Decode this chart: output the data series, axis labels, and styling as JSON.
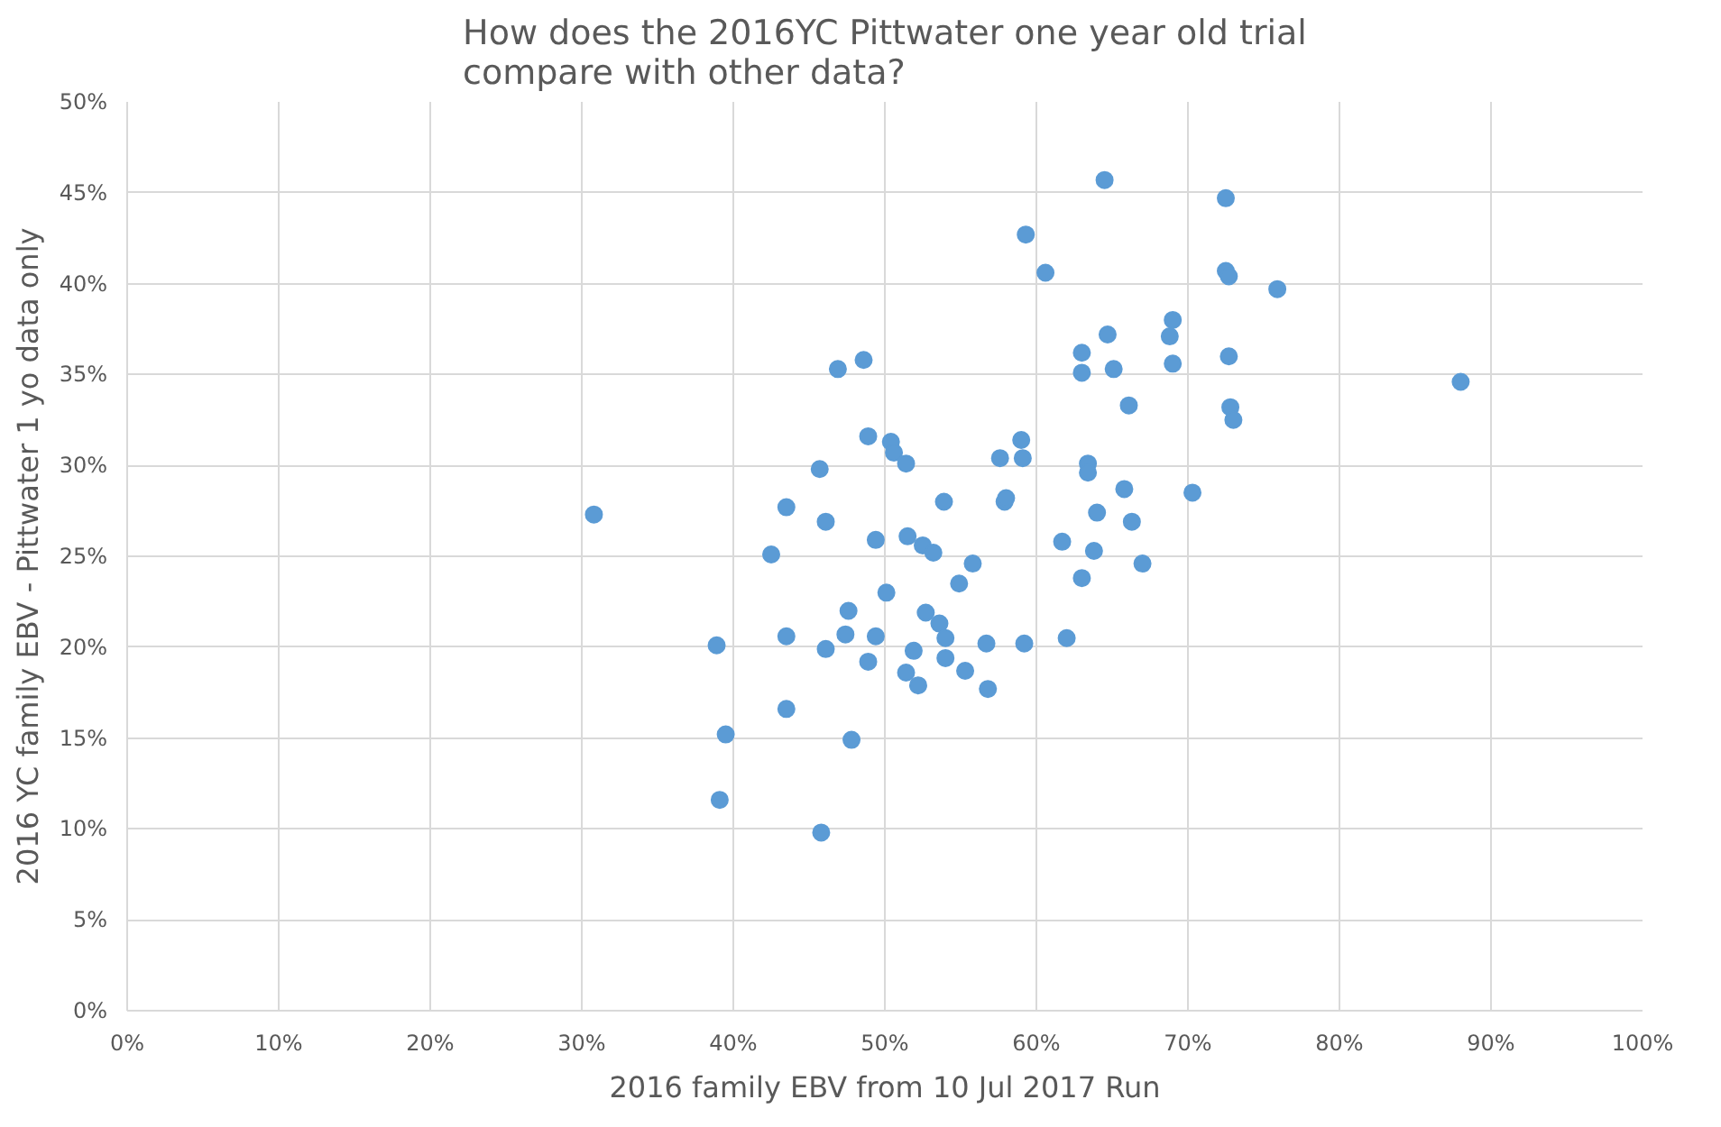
{
  "chart_data": {
    "type": "scatter",
    "title": "How does the 2016YC Pittwater one year old trial\ncompare with other data?",
    "xlabel": "2016 family EBV from 10 Jul 2017 Run",
    "ylabel": "2016 YC family EBV - Pittwater 1 yo data only",
    "xlim": [
      0,
      100
    ],
    "ylim": [
      0,
      50
    ],
    "xticks": [
      {
        "value": 0,
        "label": "0%"
      },
      {
        "value": 10,
        "label": "10%"
      },
      {
        "value": 20,
        "label": "20%"
      },
      {
        "value": 30,
        "label": "30%"
      },
      {
        "value": 40,
        "label": "40%"
      },
      {
        "value": 50,
        "label": "50%"
      },
      {
        "value": 60,
        "label": "60%"
      },
      {
        "value": 70,
        "label": "70%"
      },
      {
        "value": 80,
        "label": "80%"
      },
      {
        "value": 90,
        "label": "90%"
      },
      {
        "value": 100,
        "label": "100%"
      }
    ],
    "yticks": [
      {
        "value": 0,
        "label": "0%"
      },
      {
        "value": 5,
        "label": "5%"
      },
      {
        "value": 10,
        "label": "10%"
      },
      {
        "value": 15,
        "label": "15%"
      },
      {
        "value": 20,
        "label": "20%"
      },
      {
        "value": 25,
        "label": "25%"
      },
      {
        "value": 30,
        "label": "30%"
      },
      {
        "value": 35,
        "label": "35%"
      },
      {
        "value": 40,
        "label": "40%"
      },
      {
        "value": 45,
        "label": "45%"
      },
      {
        "value": 50,
        "label": "50%"
      }
    ],
    "grid": true,
    "marker": "circle",
    "series": [
      {
        "color": "#5b9bd5",
        "x": [
          46.9,
          48.6,
          48.9,
          50.4,
          50.6,
          51.4,
          45.7,
          43.5,
          30.8,
          46.1,
          49.4,
          51.5,
          52.5,
          42.5,
          50.1,
          47.6,
          52.7,
          47.4,
          49.4,
          43.5,
          38.9,
          46.1,
          48.9,
          51.9,
          53.2,
          53.9,
          57.9,
          55.8,
          54.9,
          53.6,
          54.0,
          51.4,
          52.2,
          54.0,
          55.3,
          56.7,
          56.8,
          59.2,
          62.0,
          43.5,
          39.5,
          47.8,
          39.1,
          45.8,
          64.0,
          66.3,
          61.7,
          63.8,
          67.0,
          63.0,
          64.5,
          72.5,
          59.3,
          60.6,
          72.5,
          72.7,
          75.9,
          69.0,
          68.8,
          64.7,
          63.0,
          63.0,
          65.1,
          69.0,
          72.7,
          88.0,
          66.1,
          72.8,
          73.0,
          59.0,
          59.1,
          57.6,
          63.4,
          63.4,
          58.0,
          65.8,
          70.3
        ],
        "values": [
          35.3,
          35.8,
          31.6,
          31.3,
          30.7,
          30.1,
          29.8,
          27.7,
          27.3,
          26.9,
          25.9,
          26.1,
          25.6,
          25.1,
          23.0,
          22.0,
          21.9,
          20.7,
          20.6,
          20.6,
          20.1,
          19.9,
          19.2,
          19.8,
          25.2,
          28.0,
          28.0,
          24.6,
          23.5,
          21.3,
          20.5,
          18.6,
          17.9,
          19.4,
          18.7,
          20.2,
          17.7,
          20.2,
          20.5,
          16.6,
          15.2,
          14.9,
          11.6,
          9.8,
          27.4,
          26.9,
          25.8,
          25.3,
          24.6,
          23.8,
          45.7,
          44.7,
          42.7,
          40.6,
          40.7,
          40.4,
          39.7,
          38.0,
          37.1,
          37.2,
          36.2,
          35.1,
          35.3,
          35.6,
          36.0,
          34.6,
          33.3,
          33.2,
          32.5,
          31.4,
          30.4,
          30.4,
          30.1,
          29.6,
          28.2,
          28.7,
          28.5
        ]
      }
    ]
  }
}
